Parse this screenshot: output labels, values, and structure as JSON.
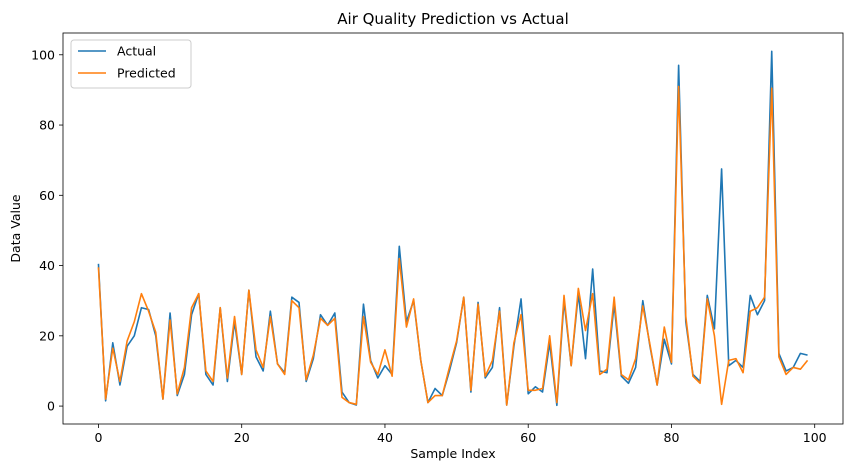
{
  "chart_data": {
    "type": "line",
    "title": "Air Quality Prediction vs Actual",
    "xlabel": "Sample Index",
    "ylabel": "Data Value",
    "xlim": [
      -4.95,
      103.95
    ],
    "ylim": [
      -5.1,
      106.2
    ],
    "xticks": [
      0,
      20,
      40,
      60,
      80,
      100
    ],
    "yticks": [
      0,
      20,
      40,
      60,
      80,
      100
    ],
    "grid": false,
    "legend_position": "upper-left",
    "series": [
      {
        "name": "Actual",
        "color": "#1f77b4",
        "values": [
          40.5,
          1.5,
          18,
          6,
          17,
          20,
          28,
          27.5,
          20,
          2,
          26.5,
          3,
          9,
          26,
          32,
          9,
          6,
          28,
          7,
          24,
          9,
          33,
          14,
          10,
          27,
          12,
          9.5,
          31,
          29.5,
          7,
          13.5,
          26,
          23,
          26.5,
          4,
          1,
          0.3,
          29,
          13,
          8,
          11.5,
          9,
          45.5,
          24,
          30,
          13,
          1,
          5,
          3,
          10,
          18,
          31,
          4,
          29.5,
          8,
          11,
          28,
          0.3,
          17,
          30.5,
          3.5,
          5.5,
          4,
          18,
          0.2,
          30,
          11.5,
          32,
          13.5,
          39,
          10,
          9.5,
          29,
          8.5,
          6.5,
          11,
          30,
          17,
          6,
          19,
          12,
          97,
          24,
          9,
          7,
          31.5,
          22,
          67.5,
          11.5,
          13,
          11,
          31.5,
          26,
          30,
          101,
          15,
          10,
          11,
          15,
          14.5
        ]
      },
      {
        "name": "Predicted",
        "color": "#ff7f0e",
        "values": [
          39.5,
          2,
          16.5,
          7,
          18.5,
          24,
          32,
          27,
          21,
          2,
          24.5,
          3.5,
          11,
          28,
          32,
          10,
          7,
          28,
          8,
          25.5,
          9,
          33,
          16,
          11,
          25.5,
          12,
          9,
          30,
          28,
          7.5,
          14.5,
          25,
          23,
          25,
          2.5,
          1,
          0.5,
          25.5,
          12.5,
          9,
          16,
          8.5,
          42,
          22.5,
          30.5,
          13,
          1,
          3,
          3,
          11,
          18.5,
          31,
          4.5,
          29,
          8.5,
          13,
          27,
          0.3,
          18,
          26,
          4.5,
          4.5,
          5,
          20,
          1,
          31.5,
          11.5,
          33.5,
          21.5,
          32,
          9,
          10.5,
          31,
          9,
          7.5,
          13.5,
          28.5,
          17.5,
          6,
          22.5,
          12.5,
          91,
          25.5,
          8.5,
          6.5,
          30.5,
          20,
          0.5,
          13,
          13.5,
          9.5,
          27,
          28,
          31,
          90.5,
          14,
          9,
          11,
          10.5,
          13
        ]
      }
    ]
  }
}
